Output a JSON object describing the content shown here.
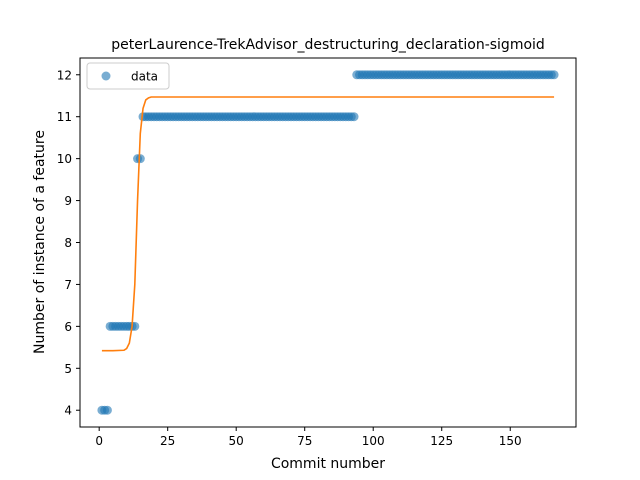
{
  "chart_data": {
    "type": "scatter",
    "title": "peterLaurence-TrekAdvisor_destructuring_declaration-sigmoid",
    "xlabel": "Commit number",
    "ylabel": "Number of instance of a feature",
    "xlim": [
      -7,
      174
    ],
    "ylim": [
      3.6,
      12.4
    ],
    "xticks": [
      0,
      25,
      50,
      75,
      100,
      125,
      150
    ],
    "yticks": [
      4,
      5,
      6,
      7,
      8,
      9,
      10,
      11,
      12
    ],
    "legend": {
      "position": "top-left",
      "entries": [
        "data"
      ]
    },
    "grid": false,
    "colors": {
      "data": "#1f77b4",
      "fit": "#ff7f0e"
    },
    "series": [
      {
        "name": "data",
        "kind": "scatter",
        "runs": [
          {
            "x_start": 1,
            "x_end": 3,
            "y": 4
          },
          {
            "x_start": 4,
            "x_end": 13,
            "y": 6
          },
          {
            "x_start": 14,
            "x_end": 15,
            "y": 10
          },
          {
            "x_start": 16,
            "x_end": 93,
            "y": 11
          },
          {
            "x_start": 94,
            "x_end": 166,
            "y": 12
          }
        ]
      },
      {
        "kind": "line",
        "x": [
          1,
          5,
          9,
          10,
          11,
          12,
          13,
          14,
          15,
          16,
          17,
          18,
          19,
          25,
          50,
          100,
          150,
          166
        ],
        "y": [
          5.42,
          5.42,
          5.43,
          5.47,
          5.6,
          6.0,
          7.0,
          9.0,
          10.6,
          11.2,
          11.4,
          11.45,
          11.47,
          11.47,
          11.47,
          11.47,
          11.47,
          11.47
        ]
      }
    ]
  }
}
